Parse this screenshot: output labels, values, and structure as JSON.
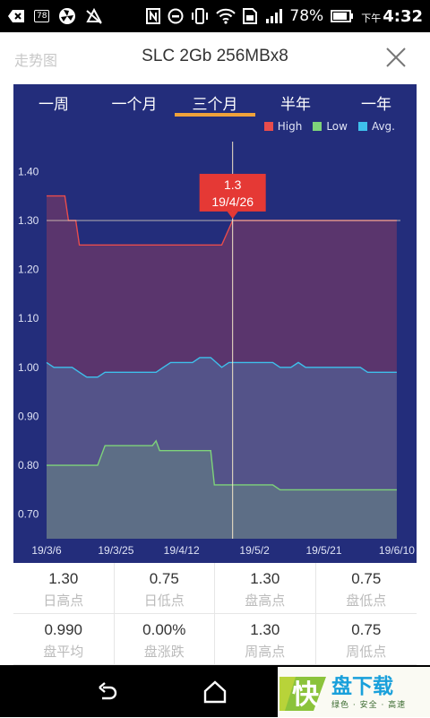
{
  "statusbar": {
    "icons_left": [
      "notification-back-icon",
      "sim-78-icon",
      "fan-icon",
      "silent-icon"
    ],
    "sim_label": "78",
    "icons_right": [
      "nfc-icon",
      "block-icon",
      "vibrate-icon",
      "wifi-icon",
      "sim-icon",
      "signal-icon",
      "battery-icon"
    ],
    "battery": "78%",
    "time_prefix": "下午",
    "time": "4:32"
  },
  "header": {
    "back_label": "走势图",
    "title": "SLC 2Gb 256MBx8",
    "close_icon": "close-icon"
  },
  "tabs": [
    {
      "label": "一周",
      "active": false
    },
    {
      "label": "一个月",
      "active": false
    },
    {
      "label": "三个月",
      "active": true
    },
    {
      "label": "半年",
      "active": false
    },
    {
      "label": "一年",
      "active": false
    }
  ],
  "colors": {
    "background": "#232d7b",
    "high": "#e84c4c",
    "low": "#7ed37a",
    "avg": "#3ec0ec",
    "tab_accent": "#f0a23a",
    "tooltip": "#e53935"
  },
  "tooltip": {
    "value": "1.3",
    "date": "19/4/26"
  },
  "chart_data": {
    "type": "line",
    "legend": [
      {
        "name": "High",
        "color": "#e84c4c"
      },
      {
        "name": "Low",
        "color": "#7ed37a"
      },
      {
        "name": "Avg.",
        "color": "#3ec0ec"
      }
    ],
    "legend_position": "top-right",
    "ylim": [
      0.65,
      1.45
    ],
    "yticks": [
      "1.40",
      "1.30",
      "1.20",
      "1.10",
      "1.00",
      "0.90",
      "0.80",
      "0.70"
    ],
    "ytick_values": [
      1.4,
      1.3,
      1.2,
      1.1,
      1.0,
      0.9,
      0.8,
      0.7
    ],
    "xlim": [
      0,
      97
    ],
    "xticks": [
      {
        "label": "19/3/6",
        "x": 0
      },
      {
        "label": "19/3/25",
        "x": 19
      },
      {
        "label": "19/4/12",
        "x": 37
      },
      {
        "label": "19/5/2",
        "x": 57
      },
      {
        "label": "19/5/21",
        "x": 76
      },
      {
        "label": "19/6/10",
        "x": 96
      }
    ],
    "crosshair": {
      "x": 51,
      "y": 1.3
    },
    "series": [
      {
        "name": "High",
        "points": [
          [
            0,
            1.35
          ],
          [
            5,
            1.35
          ],
          [
            6,
            1.3
          ],
          [
            8,
            1.3
          ],
          [
            9,
            1.25
          ],
          [
            48,
            1.25
          ],
          [
            51,
            1.3
          ],
          [
            96,
            1.3
          ]
        ]
      },
      {
        "name": "Low",
        "points": [
          [
            0,
            0.8
          ],
          [
            14,
            0.8
          ],
          [
            16,
            0.84
          ],
          [
            29,
            0.84
          ],
          [
            30,
            0.85
          ],
          [
            31,
            0.83
          ],
          [
            45,
            0.83
          ],
          [
            46,
            0.76
          ],
          [
            62,
            0.76
          ],
          [
            64,
            0.75
          ],
          [
            96,
            0.75
          ]
        ]
      },
      {
        "name": "Avg.",
        "points": [
          [
            0,
            1.01
          ],
          [
            2,
            1.0
          ],
          [
            7,
            1.0
          ],
          [
            9,
            0.99
          ],
          [
            11,
            0.98
          ],
          [
            14,
            0.98
          ],
          [
            16,
            0.99
          ],
          [
            30,
            0.99
          ],
          [
            32,
            1.0
          ],
          [
            34,
            1.01
          ],
          [
            40,
            1.01
          ],
          [
            42,
            1.02
          ],
          [
            45,
            1.02
          ],
          [
            48,
            1.0
          ],
          [
            50,
            1.01
          ],
          [
            62,
            1.01
          ],
          [
            64,
            1.0
          ],
          [
            67,
            1.0
          ],
          [
            69,
            1.01
          ],
          [
            71,
            1.0
          ],
          [
            86,
            1.0
          ],
          [
            88,
            0.99
          ],
          [
            96,
            0.99
          ]
        ]
      }
    ]
  },
  "stats": [
    {
      "value": "1.30",
      "label": "日高点"
    },
    {
      "value": "0.75",
      "label": "日低点"
    },
    {
      "value": "1.30",
      "label": "盘高点"
    },
    {
      "value": "0.75",
      "label": "盘低点"
    },
    {
      "value": "0.990",
      "label": "盘平均"
    },
    {
      "value": "0.00%",
      "label": "盘涨跌"
    },
    {
      "value": "1.30",
      "label": "周高点"
    },
    {
      "value": "0.75",
      "label": "周低点"
    }
  ],
  "watermark": {
    "logo_char": "快",
    "title": "盘下载",
    "subtitle": "绿色 · 安全 · 高速"
  }
}
